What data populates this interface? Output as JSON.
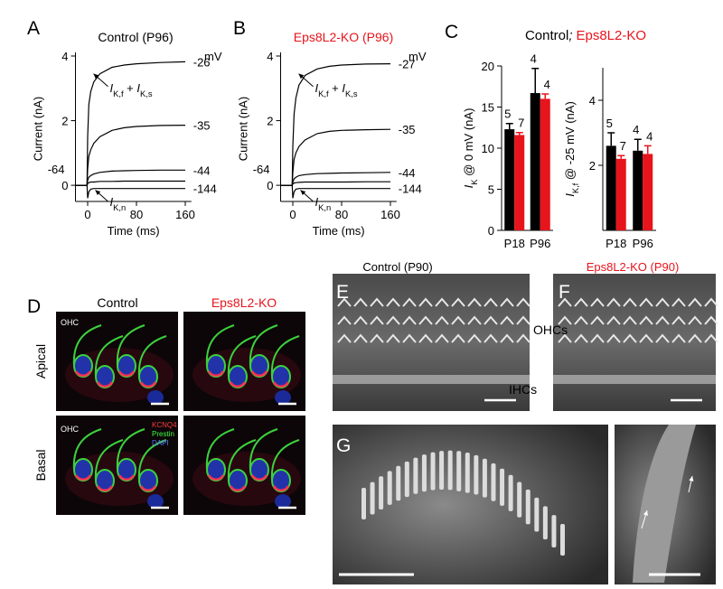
{
  "chart_data": [
    {
      "type": "line",
      "panel": "A",
      "title": "Control (P96)",
      "xlabel": "Time (ms)",
      "ylabel": "Current (nA)",
      "unit_label": "mV",
      "x": [
        -20,
        -1,
        0,
        2,
        5,
        10,
        20,
        40,
        60,
        80,
        120,
        160
      ],
      "xlim": [
        -20,
        170
      ],
      "xticks": [
        0,
        80,
        160
      ],
      "ylim": [
        -0.5,
        4
      ],
      "yticks": [
        0,
        2,
        4
      ],
      "series": [
        {
          "name": "-26",
          "color": "#000000",
          "values": [
            0,
            0,
            1.5,
            2.5,
            2.9,
            3.2,
            3.45,
            3.65,
            3.72,
            3.76,
            3.8,
            3.82
          ]
        },
        {
          "name": "-35",
          "color": "#000000",
          "values": [
            0,
            0,
            0.5,
            0.9,
            1.1,
            1.3,
            1.5,
            1.7,
            1.78,
            1.82,
            1.85,
            1.86
          ]
        },
        {
          "name": "-44",
          "color": "#000000",
          "values": [
            0,
            0,
            0.15,
            0.25,
            0.3,
            0.35,
            0.4,
            0.44,
            0.45,
            0.46,
            0.47,
            0.47
          ]
        },
        {
          "name": "-64",
          "color": "#000000",
          "values": [
            0,
            0,
            0.05,
            0.08,
            0.1,
            0.1,
            0.12,
            0.12,
            0.13,
            0.13,
            0.13,
            0.13
          ]
        },
        {
          "name": "-144",
          "color": "#000000",
          "values": [
            0,
            0,
            -0.4,
            -0.2,
            -0.12,
            -0.1,
            -0.1,
            -0.1,
            -0.1,
            -0.1,
            -0.1,
            -0.1
          ]
        }
      ],
      "annotations": [
        {
          "parts": [
            "I",
            "K,f",
            " + ",
            "I",
            "K,s"
          ]
        },
        {
          "parts": [
            "I",
            "K,n"
          ]
        }
      ]
    },
    {
      "type": "line",
      "panel": "B",
      "title": "Eps8L2-KO (P96)",
      "xlabel": "Time (ms)",
      "ylabel": "Current (nA)",
      "unit_label": "mV",
      "x": [
        -20,
        -1,
        0,
        2,
        5,
        10,
        20,
        40,
        60,
        80,
        120,
        160
      ],
      "xlim": [
        -20,
        170
      ],
      "xticks": [
        0,
        80,
        160
      ],
      "ylim": [
        -0.5,
        4
      ],
      "yticks": [
        0,
        2,
        4
      ],
      "series": [
        {
          "name": "-27",
          "color": "#000000",
          "values": [
            0,
            0,
            1.2,
            2.2,
            2.7,
            3.1,
            3.4,
            3.6,
            3.68,
            3.72,
            3.75,
            3.76
          ]
        },
        {
          "name": "-35",
          "color": "#000000",
          "values": [
            0,
            0,
            0.4,
            0.8,
            1.0,
            1.2,
            1.4,
            1.6,
            1.67,
            1.7,
            1.72,
            1.73
          ]
        },
        {
          "name": "-44",
          "color": "#000000",
          "values": [
            0,
            0,
            0.1,
            0.2,
            0.25,
            0.3,
            0.33,
            0.36,
            0.37,
            0.38,
            0.39,
            0.4
          ]
        },
        {
          "name": "-64",
          "color": "#000000",
          "values": [
            0,
            0,
            0.04,
            0.07,
            0.08,
            0.09,
            0.1,
            0.1,
            0.1,
            0.1,
            0.11,
            0.11
          ]
        },
        {
          "name": "-144",
          "color": "#000000",
          "values": [
            0,
            0,
            -0.4,
            -0.2,
            -0.12,
            -0.1,
            -0.1,
            -0.1,
            -0.1,
            -0.1,
            -0.1,
            -0.1
          ]
        }
      ],
      "annotations": [
        {
          "parts": [
            "I",
            "K,f",
            " + ",
            "I",
            "K,s"
          ]
        },
        {
          "parts": [
            "I",
            "K,n"
          ]
        }
      ]
    },
    {
      "type": "bar",
      "panel": "C",
      "legend_separator": ";",
      "ylabel": {
        "parts": [
          "I",
          "K",
          " @ 0 mV (nA)"
        ]
      },
      "categories": [
        "P18",
        "P96"
      ],
      "ylim": [
        0,
        20
      ],
      "yticks": [
        0,
        5,
        10,
        15,
        20
      ],
      "series": [
        {
          "name": "Control",
          "color": "#000000",
          "values": [
            12.3,
            16.7
          ],
          "errors": [
            0.7,
            3.0
          ],
          "n": [
            5,
            4
          ]
        },
        {
          "name": "Eps8L2-KO",
          "color": "#e8141c",
          "values": [
            11.6,
            16.0
          ],
          "errors": [
            0.3,
            0.6
          ],
          "n": [
            7,
            4
          ]
        }
      ]
    },
    {
      "type": "bar",
      "ylabel": {
        "parts": [
          "I",
          "K,f",
          " @ -25 mV (nA)"
        ]
      },
      "categories": [
        "P18",
        "P96"
      ],
      "ylim": [
        0,
        5
      ],
      "yticks": [
        2,
        4
      ],
      "series": [
        {
          "color": "#000000",
          "values": [
            2.6,
            2.45
          ],
          "errors": [
            0.4,
            0.35
          ],
          "n": [
            5,
            4
          ]
        },
        {
          "color": "#e8141c",
          "values": [
            2.2,
            2.35
          ],
          "errors": [
            0.1,
            0.25
          ],
          "n": [
            7,
            4
          ]
        }
      ]
    }
  ],
  "image_panels": {
    "D": {
      "label": "D",
      "columns": [
        "Control",
        "Eps8L2-KO"
      ],
      "rows": [
        "Apical",
        "Basal"
      ],
      "region_labels": [
        "OHC",
        "OHC"
      ],
      "channels": [
        "KCNQ4",
        "Prestin",
        "DAPI"
      ]
    },
    "E": {
      "label": "E",
      "title": "Control (P90)",
      "rows": [
        "OHCs",
        "IHCs"
      ]
    },
    "F": {
      "label": "F",
      "title": "Eps8L2-KO (P90)"
    },
    "G": {
      "label": "G"
    }
  }
}
